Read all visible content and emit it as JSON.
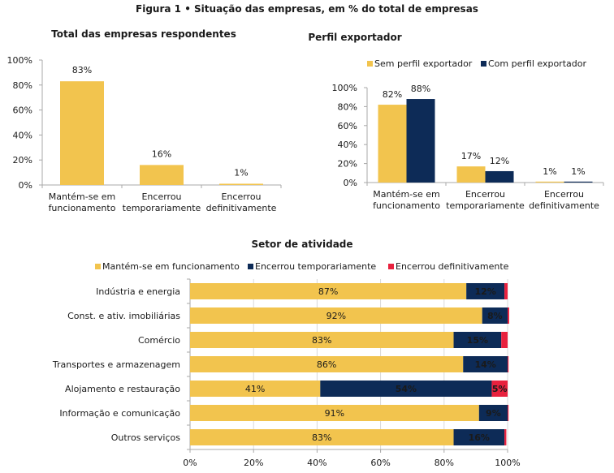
{
  "figure_title": "Figura 1 • Situação das empresas, em % do total de empresas",
  "colors": {
    "sem": "#F2C44E",
    "com": "#0D2B57",
    "def": "#E8213E",
    "axis": "#a8a8a8",
    "grid": "#d9d9d9"
  },
  "chart_data": [
    {
      "type": "bar",
      "title": "Total das empresas respondentes",
      "categories": [
        [
          "Mantém-se em",
          "funcionamento"
        ],
        [
          "Encerrou",
          "temporariamente"
        ],
        [
          "Encerrou",
          "definitivamente"
        ]
      ],
      "values": [
        83,
        16,
        1
      ],
      "value_labels": [
        "83%",
        "16%",
        "1%"
      ],
      "ylim": [
        0,
        100
      ],
      "yticks": [
        "0%",
        "20%",
        "40%",
        "60%",
        "80%",
        "100%"
      ]
    },
    {
      "type": "bar",
      "title": "Perfil exportador",
      "categories": [
        [
          "Mantém-se em",
          "funcionamento"
        ],
        [
          "Encerrou",
          "temporariamente"
        ],
        [
          "Encerrou",
          "definitivamente"
        ]
      ],
      "series": [
        {
          "name": "Sem perfil exportador",
          "values": [
            82,
            17,
            1
          ],
          "labels": [
            "82%",
            "17%",
            "1%"
          ]
        },
        {
          "name": "Com perfil exportador",
          "values": [
            88,
            12,
            1
          ],
          "labels": [
            "88%",
            "12%",
            "1%"
          ]
        }
      ],
      "legend": "top",
      "ylim": [
        0,
        100
      ],
      "yticks": [
        "0%",
        "20%",
        "40%",
        "60%",
        "80%",
        "100%"
      ]
    },
    {
      "type": "bar",
      "orientation": "horizontal-stacked",
      "title": "Setor de atividade",
      "categories": [
        "Indústria e energia",
        "Const. e ativ. imobiliárias",
        "Comércio",
        "Transportes e armazenagem",
        "Alojamento e restauração",
        "Informação e comunicação",
        "Outros serviços"
      ],
      "series": [
        {
          "name": "Mantém-se em funcionamento",
          "values": [
            87,
            92,
            83,
            86,
            41,
            91,
            83
          ],
          "labels": [
            "87%",
            "92%",
            "83%",
            "86%",
            "41%",
            "91%",
            "83%"
          ]
        },
        {
          "name": "Encerrou temporariamente",
          "values": [
            12,
            8,
            15,
            14,
            54,
            9,
            16
          ],
          "labels": [
            "12%",
            "8%",
            "15%",
            "14%",
            "54%",
            "9%",
            "16%"
          ]
        },
        {
          "name": "Encerrou definitivamente",
          "values": [
            1,
            0.5,
            2,
            0.3,
            5,
            0.3,
            0.6
          ],
          "labels": [
            "",
            "",
            "",
            "",
            "5%",
            "",
            ""
          ]
        }
      ],
      "legend": "top",
      "xlim": [
        0,
        100
      ],
      "xticks": [
        "0%",
        "20%",
        "40%",
        "60%",
        "80%",
        "100%"
      ]
    }
  ]
}
